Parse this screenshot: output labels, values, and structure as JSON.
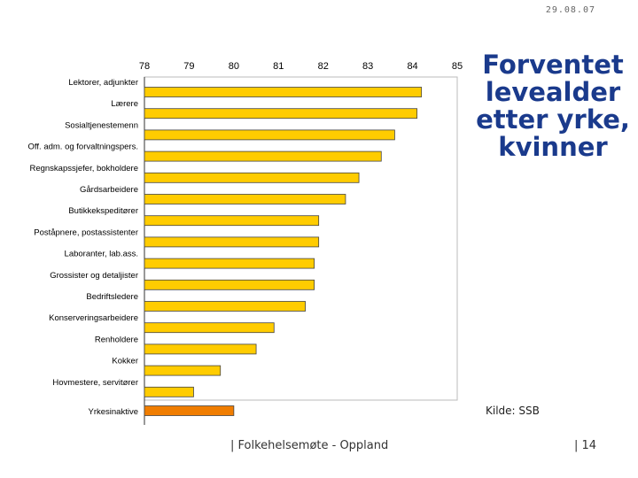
{
  "header": {
    "date": "29.08.07"
  },
  "slide": {
    "title_lines": [
      "Forventet",
      "levealder",
      "etter yrke,",
      "kvinner"
    ],
    "source": "Kilde: SSB",
    "footer": "| Folkehelsemøte - Oppland",
    "page": "| 14"
  },
  "colors": {
    "bar": "#FFCC00",
    "highlight": "#F07D00",
    "bar_stroke": "#444444",
    "frame": "#BBBBBB",
    "title": "#1A3A8C"
  },
  "chart_data": {
    "type": "bar",
    "orientation": "horizontal",
    "title": "",
    "xlabel": "",
    "ylabel": "",
    "xlim": [
      78,
      85
    ],
    "xticks": [
      "78",
      "79",
      "80",
      "81",
      "82",
      "83",
      "84",
      "85"
    ],
    "categories": [
      "Lektorer, adjunkter",
      "Lærere",
      "Sosialtjenestemenn",
      "Off. adm. og forvaltningspers.",
      "Regnskapssjefer, bokholdere",
      "Gårdsarbeidere",
      "Butikkekspeditører",
      "Poståpnere, postassistenter",
      "Laboranter, lab.ass.",
      "Grossister og detaljister",
      "Bedriftsledere",
      "Konserveringsarbeidere",
      "Renholdere",
      "Kokker",
      "Hovmestere, servitører",
      "Yrkesinaktive"
    ],
    "values": [
      84.2,
      84.1,
      83.6,
      83.3,
      82.8,
      82.5,
      81.9,
      81.9,
      81.8,
      81.8,
      81.6,
      80.9,
      80.5,
      79.7,
      79.1,
      80.0
    ],
    "highlight_index": 15,
    "grid": false,
    "legend": "none"
  }
}
